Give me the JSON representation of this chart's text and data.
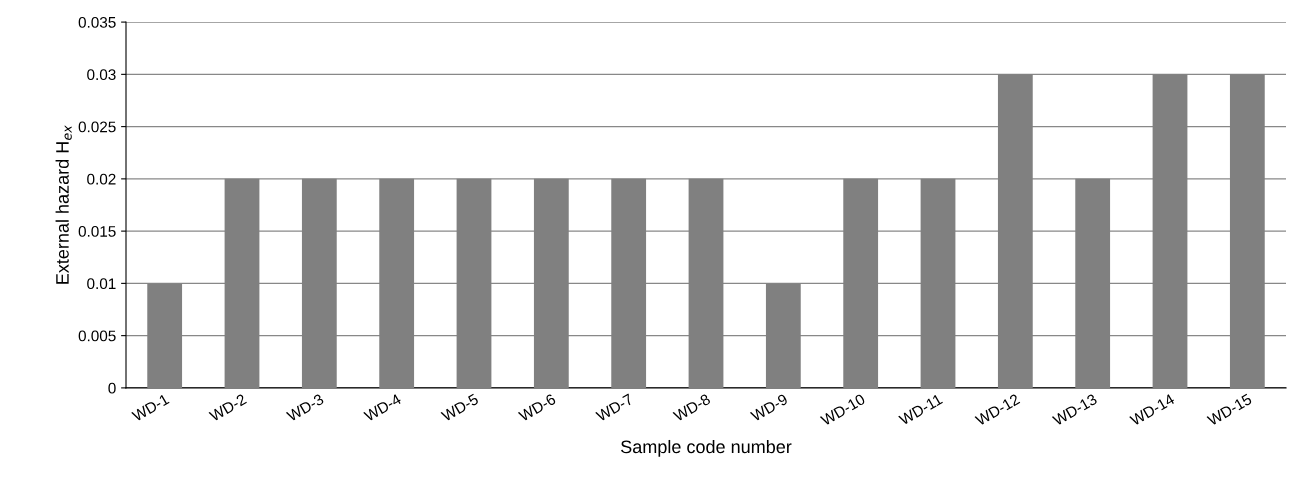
{
  "chart_data": {
    "type": "bar",
    "xlabel": "Sample code number",
    "ylabel": "External hazard H$_{ex}$",
    "categories": [
      "WD-1",
      "WD-2",
      "WD-3",
      "WD-4",
      "WD-5",
      "WD-6",
      "WD-7",
      "WD-8",
      "WD-9",
      "WD-10",
      "WD-11",
      "WD-12",
      "WD-13",
      "WD-14",
      "WD-15"
    ],
    "values": [
      0.01,
      0.02,
      0.02,
      0.02,
      0.02,
      0.02,
      0.02,
      0.02,
      0.01,
      0.02,
      0.02,
      0.03,
      0.02,
      0.03,
      0.03
    ],
    "color": "#808080",
    "ylim": [
      0,
      0.035
    ],
    "yticks": [
      0,
      0.005,
      0.01,
      0.015,
      0.02,
      0.025,
      0.03,
      0.035
    ],
    "grid": "y",
    "legend": false
  }
}
